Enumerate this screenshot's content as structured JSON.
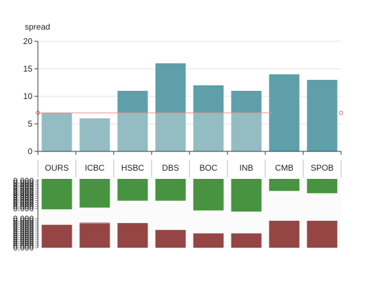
{
  "chart_data": [
    {
      "type": "bar",
      "ylabel": "spread",
      "categories": [
        "OURS",
        "ICBC",
        "HSBC",
        "DBS",
        "BOC",
        "INB",
        "CMB",
        "SPOB"
      ],
      "ylim": [
        0,
        20
      ],
      "yticks": [
        0,
        5,
        10,
        15,
        20
      ],
      "series": [
        {
          "values": [
            7,
            6,
            11,
            16,
            12,
            11,
            14,
            13
          ],
          "color": "#5f9faa"
        },
        {
          "values": [
            7,
            6,
            7,
            7,
            7,
            7,
            null,
            null
          ],
          "color": "#93bcc3"
        }
      ],
      "reference_line": 7,
      "reference_color": "#e8908a"
    },
    {
      "type": "bar",
      "layout": "diverging",
      "upper": {
        "color": "#47933f",
        "values": [
          0.53,
          0.5,
          0.38,
          0.38,
          0.55,
          0.57,
          0.21,
          0.25
        ],
        "ghost_values": [
          null,
          null,
          null,
          null,
          0.53,
          0.53,
          null,
          null
        ]
      },
      "lower": {
        "color": "#954543",
        "values": [
          0.4,
          0.42,
          0.43,
          0.31,
          0.25,
          0.25,
          0.47,
          0.47
        ],
        "ghost_values": [
          null,
          0.44,
          0.42,
          null,
          null,
          null,
          null,
          null
        ]
      },
      "tick_labels": [
        "0.000",
        "0.000",
        "0.000",
        "0.000",
        "0.000",
        "0.000",
        "0.000",
        "0.000",
        "0.000",
        "0.000",
        "0.000",
        "0.000",
        "0.000",
        "0.000",
        "0.000",
        "0.000",
        "0.000",
        "0.000",
        "0.000",
        "0.000",
        "0.000",
        "0.000",
        "0.000",
        "0.000",
        "0.000",
        "0.000",
        "0.000",
        "0.000",
        "0.000",
        "0.000"
      ]
    }
  ]
}
